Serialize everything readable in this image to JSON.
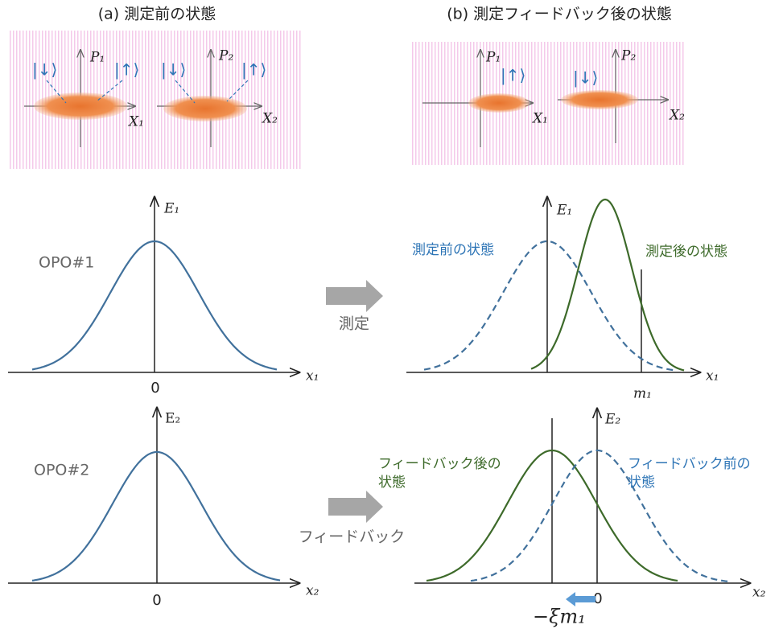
{
  "header": {
    "left_title": "(a) 測定前の状態",
    "right_title": "(b) 測定フィードバック後の状態"
  },
  "phase_space": {
    "a1": {
      "p": "P₁",
      "x": "X₁",
      "ket_down": "|↓⟩",
      "ket_up": "|↑⟩"
    },
    "a2": {
      "p": "P₂",
      "x": "X₂",
      "ket_down": "|↓⟩",
      "ket_up": "|↑⟩"
    },
    "b1": {
      "p": "P₁",
      "x": "X₁",
      "ket": "|↑⟩"
    },
    "b2": {
      "p": "P₂",
      "x": "X₂",
      "ket": "|↓⟩"
    }
  },
  "graphs": {
    "opo1_label": "OPO#1",
    "opo2_label": "OPO#2",
    "before1": {
      "y_label": "E₁",
      "x_label": "x₁",
      "origin": "0"
    },
    "after1": {
      "y_label": "E₁",
      "x_label": "x₁",
      "before_label": "測定前の状態",
      "after_label": "測定後の状態",
      "marker": "m₁"
    },
    "before2": {
      "y_label": "E₂",
      "x_label": "x₂",
      "origin": "0"
    },
    "after2": {
      "y_label": "E₂",
      "x_label": "x₂",
      "origin": "0",
      "after_label": [
        "フィードバック後の",
        "状態"
      ],
      "before_label": [
        "フィードバック前の",
        "状態"
      ],
      "shift": "−ξm₁"
    }
  },
  "steps": {
    "measure": "測定",
    "feedback": "フィードバック"
  }
}
